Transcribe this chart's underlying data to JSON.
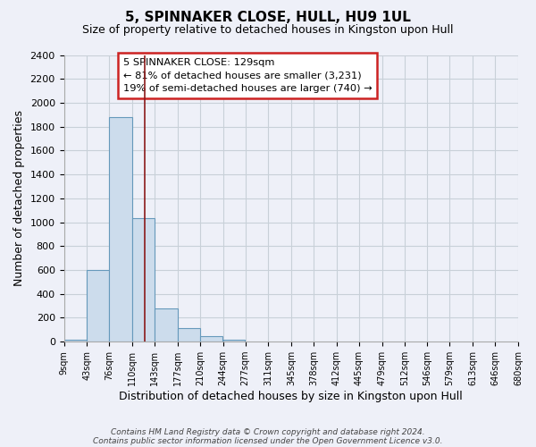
{
  "title": "5, SPINNAKER CLOSE, HULL, HU9 1UL",
  "subtitle": "Size of property relative to detached houses in Kingston upon Hull",
  "xlabel": "Distribution of detached houses by size in Kingston upon Hull",
  "ylabel": "Number of detached properties",
  "bar_left_edges": [
    9,
    43,
    76,
    110,
    143,
    177,
    210,
    244,
    277,
    311,
    345,
    378,
    412,
    445,
    479,
    512,
    546,
    579,
    613,
    646
  ],
  "bar_widths": [
    34,
    33,
    34,
    33,
    34,
    33,
    34,
    33,
    34,
    34,
    33,
    34,
    33,
    34,
    33,
    34,
    33,
    34,
    33,
    34
  ],
  "bar_heights": [
    20,
    600,
    1880,
    1035,
    280,
    115,
    48,
    20,
    0,
    0,
    0,
    0,
    0,
    0,
    0,
    0,
    0,
    0,
    0,
    0
  ],
  "bar_color": "#ccdcec",
  "bar_edge_color": "#6699bb",
  "vline_color": "#8b1a1a",
  "tick_labels": [
    "9sqm",
    "43sqm",
    "76sqm",
    "110sqm",
    "143sqm",
    "177sqm",
    "210sqm",
    "244sqm",
    "277sqm",
    "311sqm",
    "345sqm",
    "378sqm",
    "412sqm",
    "445sqm",
    "479sqm",
    "512sqm",
    "546sqm",
    "579sqm",
    "613sqm",
    "646sqm",
    "680sqm"
  ],
  "tick_positions": [
    9,
    43,
    76,
    110,
    143,
    177,
    210,
    244,
    277,
    311,
    345,
    378,
    412,
    445,
    479,
    512,
    546,
    579,
    613,
    646,
    680
  ],
  "xlim_left": 9,
  "xlim_right": 680,
  "ylim": [
    0,
    2400
  ],
  "yticks": [
    0,
    200,
    400,
    600,
    800,
    1000,
    1200,
    1400,
    1600,
    1800,
    2000,
    2200,
    2400
  ],
  "annotation_title": "5 SPINNAKER CLOSE: 129sqm",
  "annotation_line1": "← 81% of detached houses are smaller (3,231)",
  "annotation_line2": "19% of semi-detached houses are larger (740) →",
  "property_size": 129,
  "grid_color": "#c8d0d8",
  "background_color": "#eef0f8",
  "plot_bg_color": "#eef0f8",
  "footer_line1": "Contains HM Land Registry data © Crown copyright and database right 2024.",
  "footer_line2": "Contains public sector information licensed under the Open Government Licence v3.0."
}
